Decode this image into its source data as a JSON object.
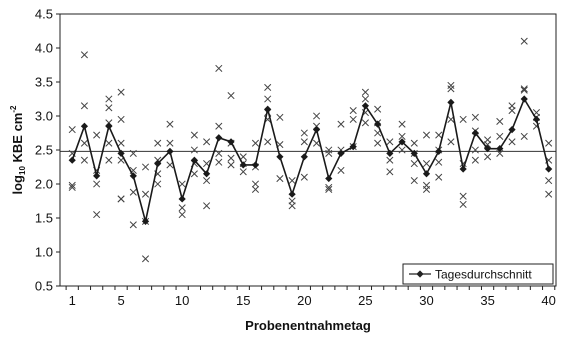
{
  "chart_data": {
    "type": "line",
    "xlabel": "Probenentnahmetag",
    "ylabel": "log",
    "ylabel_sub": "10",
    "ylabel_rest": " KBE cm",
    "ylabel_sup": "-2",
    "xlim": [
      0,
      40.6
    ],
    "ylim": [
      0.5,
      4.5
    ],
    "x_ticks": [
      1,
      5,
      10,
      15,
      20,
      25,
      30,
      35,
      40
    ],
    "y_ticks": [
      "0.5",
      "1.0",
      "1.5",
      "2.0",
      "2.5",
      "3.0",
      "3.5",
      "4.0",
      "4.5"
    ],
    "grid": false,
    "legend_position": "bottom-right",
    "reference_line": 2.48,
    "series": [
      {
        "name": "Tagesdurchschnitt",
        "style": "line-diamond",
        "x": [
          1,
          2,
          3,
          4,
          5,
          6,
          7,
          8,
          9,
          10,
          11,
          12,
          13,
          14,
          15,
          16,
          17,
          18,
          19,
          20,
          21,
          22,
          23,
          24,
          25,
          26,
          27,
          28,
          29,
          30,
          31,
          32,
          33,
          34,
          35,
          36,
          37,
          38,
          39,
          40
        ],
        "values": [
          2.35,
          2.85,
          2.12,
          2.85,
          2.45,
          2.12,
          1.45,
          2.3,
          2.48,
          1.78,
          2.35,
          2.15,
          2.68,
          2.62,
          2.28,
          2.28,
          3.1,
          2.4,
          1.85,
          2.4,
          2.8,
          2.08,
          2.45,
          2.55,
          3.15,
          2.88,
          2.45,
          2.62,
          2.45,
          2.15,
          2.48,
          3.2,
          2.22,
          2.75,
          2.52,
          2.52,
          2.8,
          3.25,
          2.95,
          2.22
        ]
      },
      {
        "name": "",
        "style": "x-marker",
        "points": [
          [
            1,
            2.8
          ],
          [
            1,
            2.45
          ],
          [
            1,
            1.95
          ],
          [
            1,
            1.98
          ],
          [
            2,
            3.9
          ],
          [
            2,
            3.15
          ],
          [
            2,
            2.6
          ],
          [
            2,
            2.35
          ],
          [
            3,
            2.72
          ],
          [
            3,
            2.2
          ],
          [
            3,
            2.0
          ],
          [
            3,
            1.55
          ],
          [
            4,
            3.25
          ],
          [
            4,
            3.12
          ],
          [
            4,
            2.9
          ],
          [
            4,
            2.6
          ],
          [
            4,
            2.35
          ],
          [
            5,
            3.35
          ],
          [
            5,
            2.95
          ],
          [
            5,
            2.6
          ],
          [
            5,
            2.35
          ],
          [
            5,
            1.78
          ],
          [
            5,
            1.78
          ],
          [
            6,
            2.45
          ],
          [
            6,
            2.2
          ],
          [
            6,
            1.88
          ],
          [
            6,
            1.4
          ],
          [
            7,
            2.25
          ],
          [
            7,
            1.85
          ],
          [
            7,
            1.45
          ],
          [
            7,
            0.9
          ],
          [
            8,
            2.6
          ],
          [
            8,
            2.35
          ],
          [
            8,
            2.15
          ],
          [
            8,
            2.0
          ],
          [
            9,
            2.88
          ],
          [
            9,
            2.6
          ],
          [
            9,
            2.28
          ],
          [
            10,
            2.0
          ],
          [
            10,
            1.65
          ],
          [
            10,
            1.55
          ],
          [
            11,
            2.72
          ],
          [
            11,
            2.5
          ],
          [
            11,
            2.3
          ],
          [
            11,
            2.15
          ],
          [
            12,
            2.62
          ],
          [
            12,
            2.3
          ],
          [
            12,
            2.05
          ],
          [
            12,
            1.68
          ],
          [
            13,
            3.7
          ],
          [
            13,
            2.85
          ],
          [
            13,
            2.45
          ],
          [
            13,
            2.32
          ],
          [
            14,
            3.3
          ],
          [
            14,
            2.6
          ],
          [
            14,
            2.38
          ],
          [
            14,
            2.28
          ],
          [
            15,
            2.4
          ],
          [
            15,
            2.3
          ],
          [
            15,
            2.18
          ],
          [
            16,
            2.6
          ],
          [
            16,
            2.25
          ],
          [
            16,
            2.0
          ],
          [
            16,
            1.92
          ],
          [
            17,
            3.42
          ],
          [
            17,
            3.25
          ],
          [
            17,
            3.05
          ],
          [
            17,
            2.95
          ],
          [
            17,
            2.62
          ],
          [
            18,
            2.98
          ],
          [
            18,
            2.58
          ],
          [
            18,
            2.08
          ],
          [
            19,
            2.05
          ],
          [
            19,
            1.75
          ],
          [
            19,
            1.68
          ],
          [
            20,
            2.75
          ],
          [
            20,
            2.62
          ],
          [
            20,
            2.1
          ],
          [
            21,
            3.0
          ],
          [
            21,
            2.85
          ],
          [
            21,
            2.6
          ],
          [
            22,
            2.5
          ],
          [
            22,
            2.45
          ],
          [
            22,
            1.95
          ],
          [
            22,
            1.92
          ],
          [
            23,
            2.88
          ],
          [
            23,
            2.5
          ],
          [
            23,
            2.2
          ],
          [
            24,
            3.08
          ],
          [
            24,
            2.95
          ],
          [
            24,
            2.55
          ],
          [
            25,
            3.35
          ],
          [
            25,
            3.25
          ],
          [
            25,
            3.05
          ],
          [
            25,
            2.9
          ],
          [
            26,
            3.1
          ],
          [
            26,
            2.9
          ],
          [
            26,
            2.75
          ],
          [
            26,
            2.6
          ],
          [
            27,
            2.62
          ],
          [
            27,
            2.35
          ],
          [
            27,
            2.18
          ],
          [
            28,
            2.88
          ],
          [
            28,
            2.7
          ],
          [
            28,
            2.5
          ],
          [
            29,
            2.6
          ],
          [
            29,
            2.45
          ],
          [
            29,
            2.3
          ],
          [
            29,
            2.05
          ],
          [
            30,
            2.72
          ],
          [
            30,
            2.3
          ],
          [
            30,
            1.92
          ],
          [
            30,
            1.98
          ],
          [
            31,
            2.72
          ],
          [
            31,
            2.5
          ],
          [
            31,
            2.32
          ],
          [
            31,
            2.1
          ],
          [
            32,
            3.45
          ],
          [
            32,
            3.4
          ],
          [
            32,
            2.95
          ],
          [
            32,
            2.62
          ],
          [
            33,
            2.95
          ],
          [
            33,
            2.3
          ],
          [
            33,
            1.82
          ],
          [
            33,
            1.7
          ],
          [
            34,
            2.98
          ],
          [
            34,
            2.78
          ],
          [
            34,
            2.5
          ],
          [
            34,
            2.35
          ],
          [
            35,
            2.65
          ],
          [
            35,
            2.58
          ],
          [
            35,
            2.4
          ],
          [
            36,
            2.92
          ],
          [
            36,
            2.7
          ],
          [
            36,
            2.45
          ],
          [
            37,
            3.15
          ],
          [
            37,
            3.08
          ],
          [
            37,
            2.62
          ],
          [
            38,
            4.1
          ],
          [
            38,
            3.4
          ],
          [
            38,
            3.38
          ],
          [
            38,
            2.7
          ],
          [
            39,
            3.05
          ],
          [
            39,
            2.98
          ],
          [
            39,
            2.85
          ],
          [
            40,
            2.6
          ],
          [
            40,
            2.35
          ],
          [
            40,
            2.05
          ],
          [
            40,
            1.85
          ]
        ]
      }
    ]
  }
}
